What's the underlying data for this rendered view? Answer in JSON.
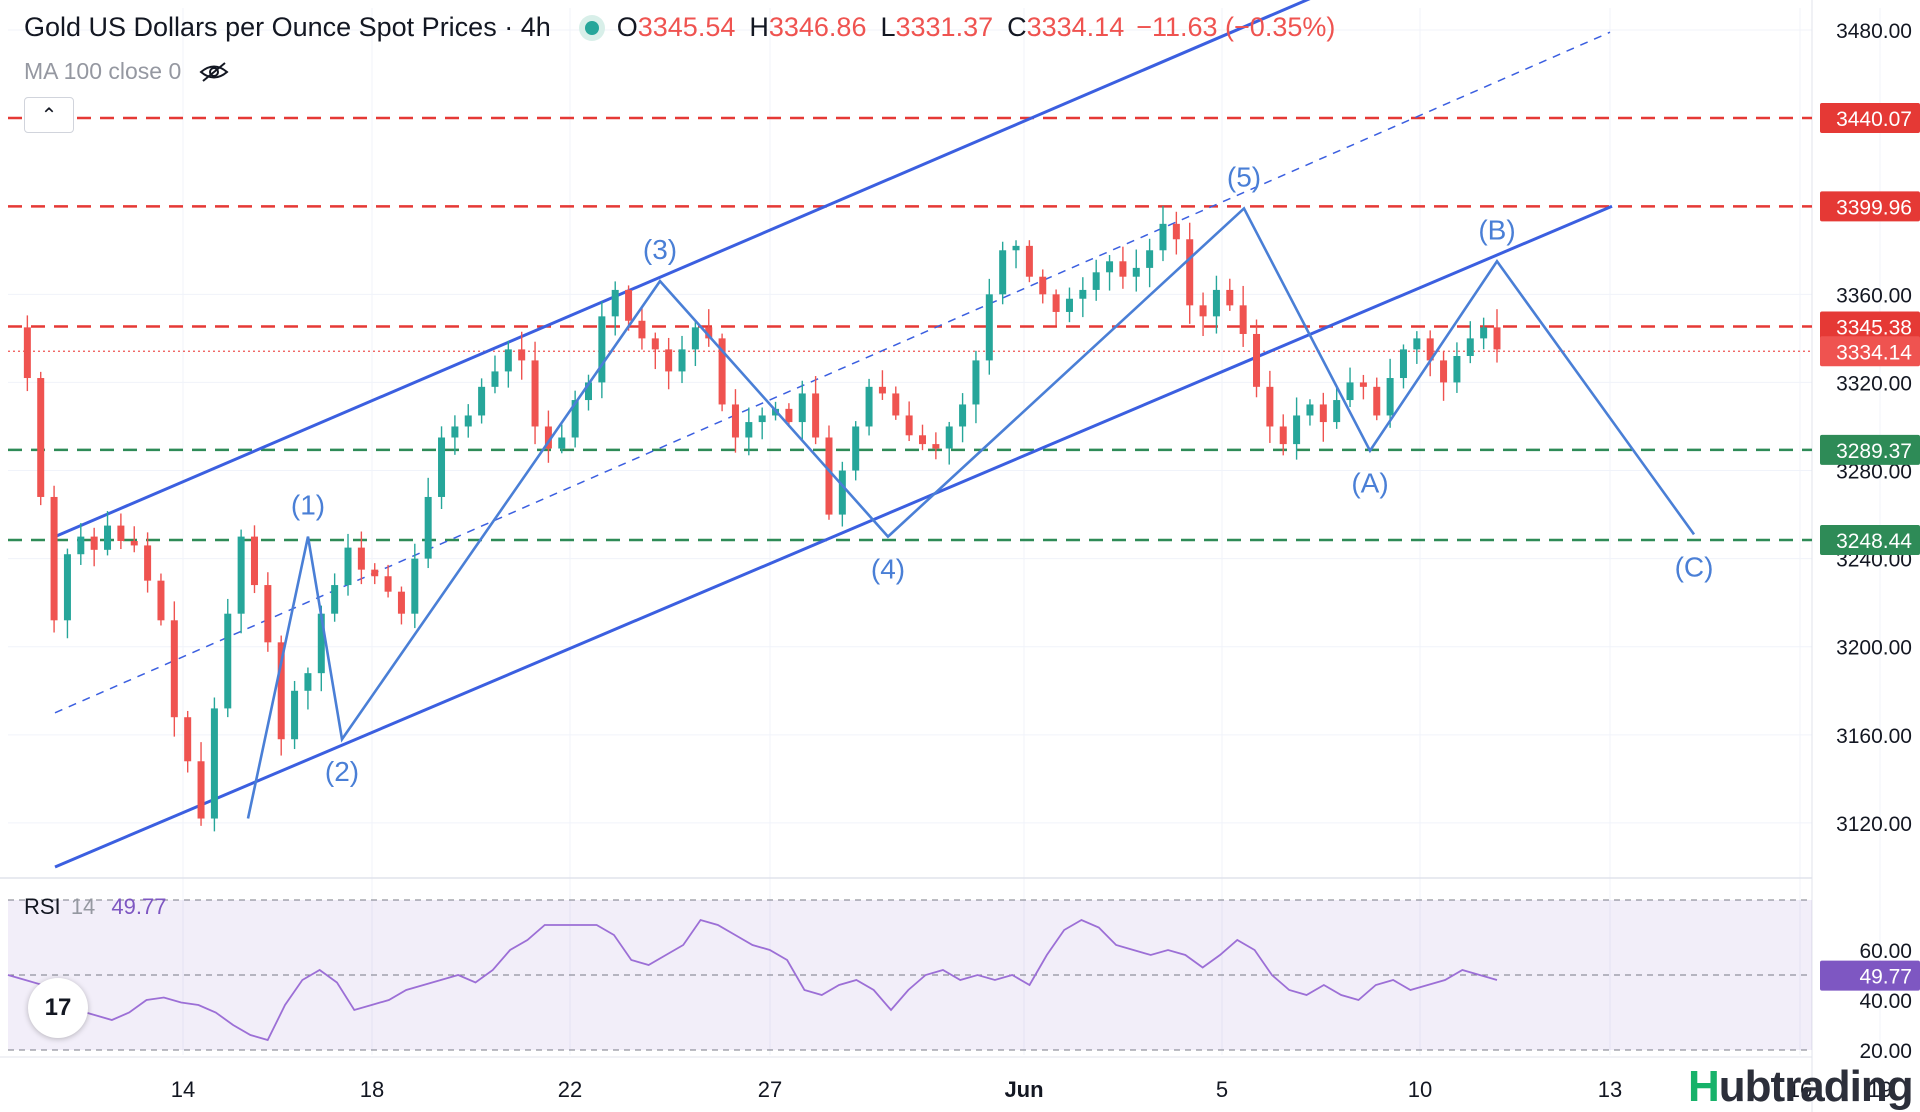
{
  "header": {
    "title": "Gold US Dollars per Ounce Spot Prices · 4h",
    "open_label": "O",
    "open": "3345.54",
    "high_label": "H",
    "high": "3346.86",
    "low_label": "L",
    "low": "3331.37",
    "close_label": "C",
    "close": "3334.14",
    "change": "−11.63 (−0.35%)"
  },
  "indicator": {
    "label": "MA 100 close 0"
  },
  "rsi": {
    "label": "RSI",
    "period": "14",
    "value": "49.77"
  },
  "brand": {
    "mark": "H",
    "name": "Hubtrading"
  },
  "tv_logo": "17",
  "colors": {
    "up": "#26a69a",
    "down": "#ef5350",
    "channel": "#3b5fe0",
    "wave": "#4a7fd6",
    "resistance": "#e53935",
    "support": "#2e8b57",
    "rsi": "#9c6fd6"
  },
  "chart_data": {
    "type": "candlestick",
    "title": "Gold US Dollars per Ounce Spot Prices · 4h",
    "ylim": [
      3095,
      3490
    ],
    "y_ticks": [
      3120,
      3160,
      3200,
      3240,
      3280,
      3320,
      3360,
      3480
    ],
    "x_ticks": [
      "14",
      "18",
      "22",
      "27",
      "Jun",
      "5",
      "10",
      "13",
      "16",
      "19"
    ],
    "close_path": [
      3345,
      3322,
      3268,
      3212,
      3242,
      3250,
      3244,
      3255,
      3248,
      3246,
      3230,
      3212,
      3168,
      3148,
      3122,
      3172,
      3215,
      3250,
      3228,
      3202,
      3158,
      3180,
      3188,
      3215,
      3228,
      3245,
      3235,
      3232,
      3225,
      3215,
      3240,
      3268,
      3295,
      3300,
      3305,
      3318,
      3325,
      3335,
      3330,
      3300,
      3290,
      3295,
      3312,
      3320,
      3350,
      3362,
      3348,
      3340,
      3335,
      3325,
      3335,
      3345,
      3340,
      3310,
      3295,
      3302,
      3305,
      3308,
      3302,
      3315,
      3295,
      3260,
      3280,
      3300,
      3318,
      3315,
      3305,
      3296,
      3292,
      3290,
      3300,
      3310,
      3330,
      3360,
      3380,
      3382,
      3368,
      3360,
      3352,
      3358,
      3362,
      3370,
      3375,
      3368,
      3372,
      3380,
      3392,
      3385,
      3355,
      3350,
      3362,
      3355,
      3342,
      3318,
      3300,
      3292,
      3305,
      3310,
      3302,
      3312,
      3320,
      3318,
      3305,
      3322,
      3335,
      3340,
      3330,
      3320,
      3332,
      3340,
      3345,
      3335
    ],
    "wave_labels": [
      "(1)",
      "(2)",
      "(3)",
      "(4)",
      "(5)",
      "(A)",
      "(B)",
      "(C)"
    ],
    "wave_points": [
      3250,
      3158,
      3366,
      3250,
      3399,
      3289,
      3375,
      3251
    ],
    "levels": [
      {
        "label": "3440.07",
        "value": 3440.07,
        "kind": "resistance"
      },
      {
        "label": "3399.96",
        "value": 3399.96,
        "kind": "resistance"
      },
      {
        "label": "3345.38",
        "value": 3345.38,
        "kind": "resistance"
      },
      {
        "label": "3289.37",
        "value": 3289.37,
        "kind": "support"
      },
      {
        "label": "3248.44",
        "value": 3248.44,
        "kind": "support"
      }
    ],
    "last_price": {
      "label": "3334.14",
      "value": 3334.14
    },
    "rsi_ticks": [
      "60.00",
      "40.00",
      "20.00"
    ],
    "rsi_ylim": [
      18,
      82
    ],
    "rsi_value_label": "49.77",
    "rsi_value": 49.77,
    "rsi_series": [
      50,
      48,
      46,
      40,
      36,
      34,
      32,
      35,
      40,
      41,
      39,
      38,
      35,
      30,
      26,
      24,
      38,
      48,
      52,
      47,
      36,
      38,
      40,
      44,
      46,
      48,
      50,
      47,
      52,
      60,
      64,
      70,
      70,
      70,
      70,
      66,
      56,
      54,
      58,
      62,
      72,
      70,
      66,
      62,
      60,
      56,
      44,
      42,
      46,
      48,
      44,
      36,
      44,
      50,
      52,
      48,
      50,
      48,
      50,
      46,
      58,
      68,
      72,
      69,
      62,
      60,
      58,
      60,
      58,
      53,
      58,
      64,
      60,
      50,
      44,
      42,
      46,
      42,
      40,
      46,
      48,
      44,
      46,
      48,
      52,
      50,
      48
    ]
  }
}
